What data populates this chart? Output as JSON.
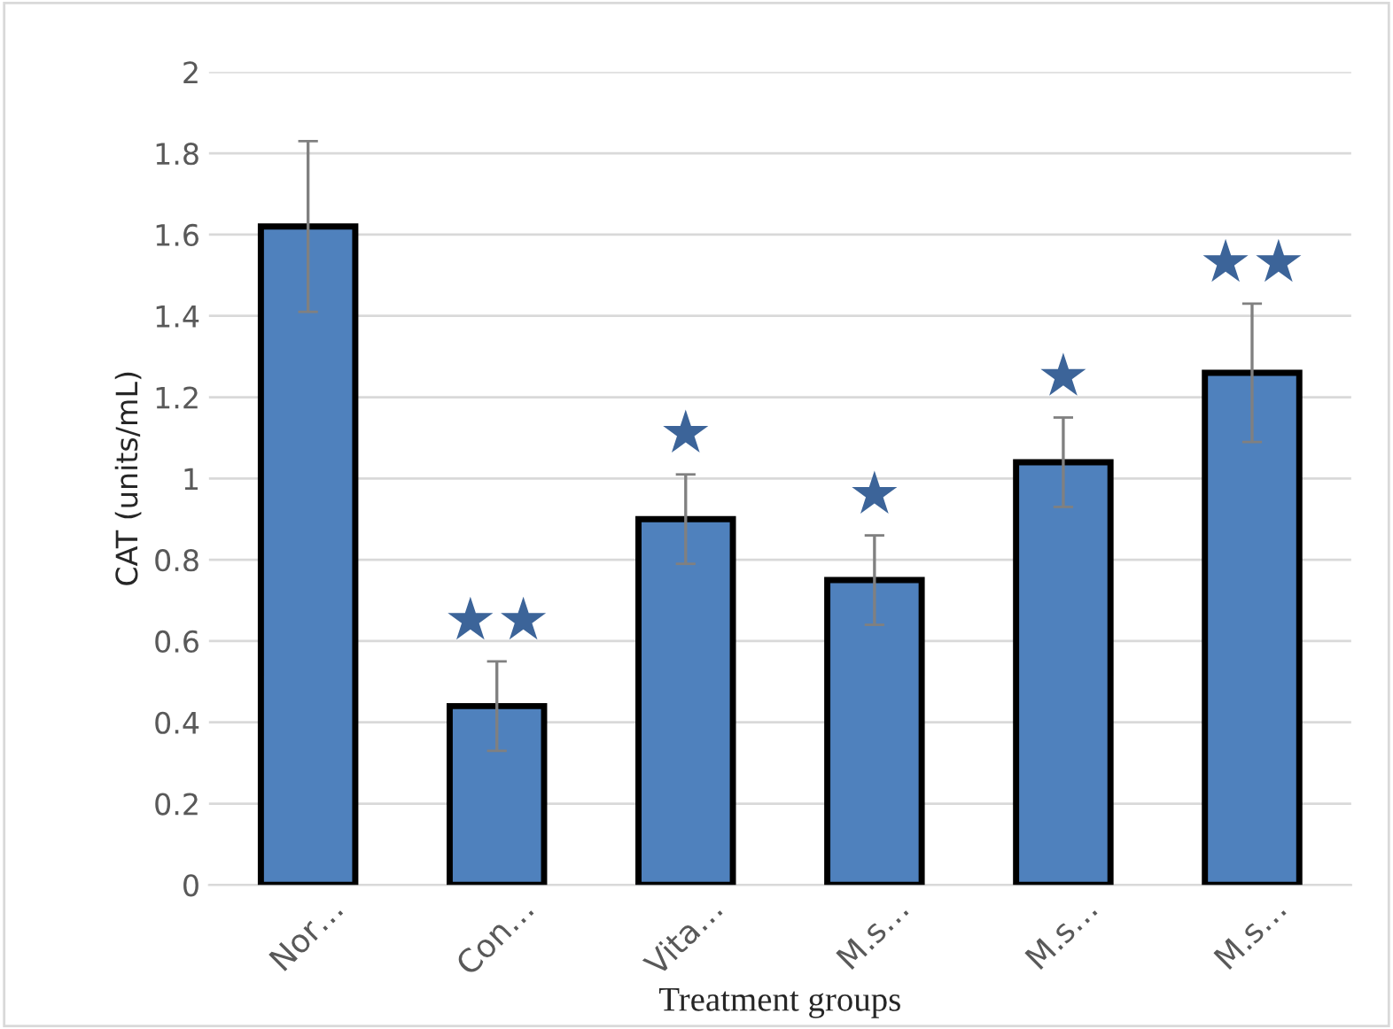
{
  "chart_data": {
    "type": "bar",
    "ylabel": "CAT (units/mL)",
    "xlabel": "Treatment groups",
    "categories": [
      "Nor…",
      "Con…",
      "Vita…",
      "M.s…",
      "M.s…",
      "M.s…"
    ],
    "values": [
      1.62,
      0.44,
      0.9,
      0.75,
      1.04,
      1.26
    ],
    "errors": [
      0.21,
      0.11,
      0.11,
      0.11,
      0.11,
      0.17
    ],
    "color": "#4f81bd",
    "ylim": [
      0,
      2
    ],
    "yticks": [
      0,
      0.2,
      0.4,
      0.6,
      0.8,
      1,
      1.2,
      1.4,
      1.6,
      1.8,
      2
    ],
    "grid": "y",
    "value_labels": [
      null,
      "★★",
      "★",
      "★",
      "★",
      "★★"
    ]
  }
}
